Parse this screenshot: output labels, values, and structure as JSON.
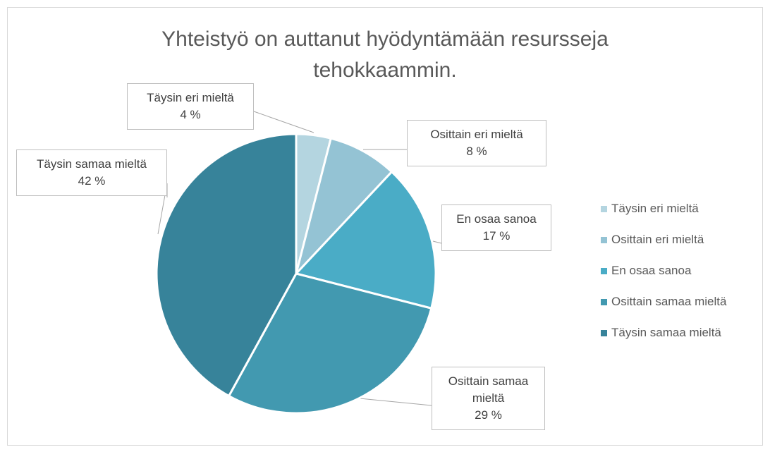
{
  "chart_data": {
    "type": "pie",
    "title": "Yhteistyö on auttanut hyödyntämään resursseja tehokkaammin.",
    "categories": [
      "Täysin eri mieltä",
      "Osittain eri mieltä",
      "En osaa sanoa",
      "Osittain samaa mieltä",
      "Täysin samaa mieltä"
    ],
    "values": [
      4,
      8,
      17,
      29,
      42
    ],
    "value_labels": [
      "4 %",
      "8 %",
      "17 %",
      "29 %",
      "42 %"
    ],
    "colors": [
      "#b4d5e0",
      "#94c3d4",
      "#4aacc6",
      "#4299b0",
      "#37839a"
    ],
    "legend": "right"
  }
}
